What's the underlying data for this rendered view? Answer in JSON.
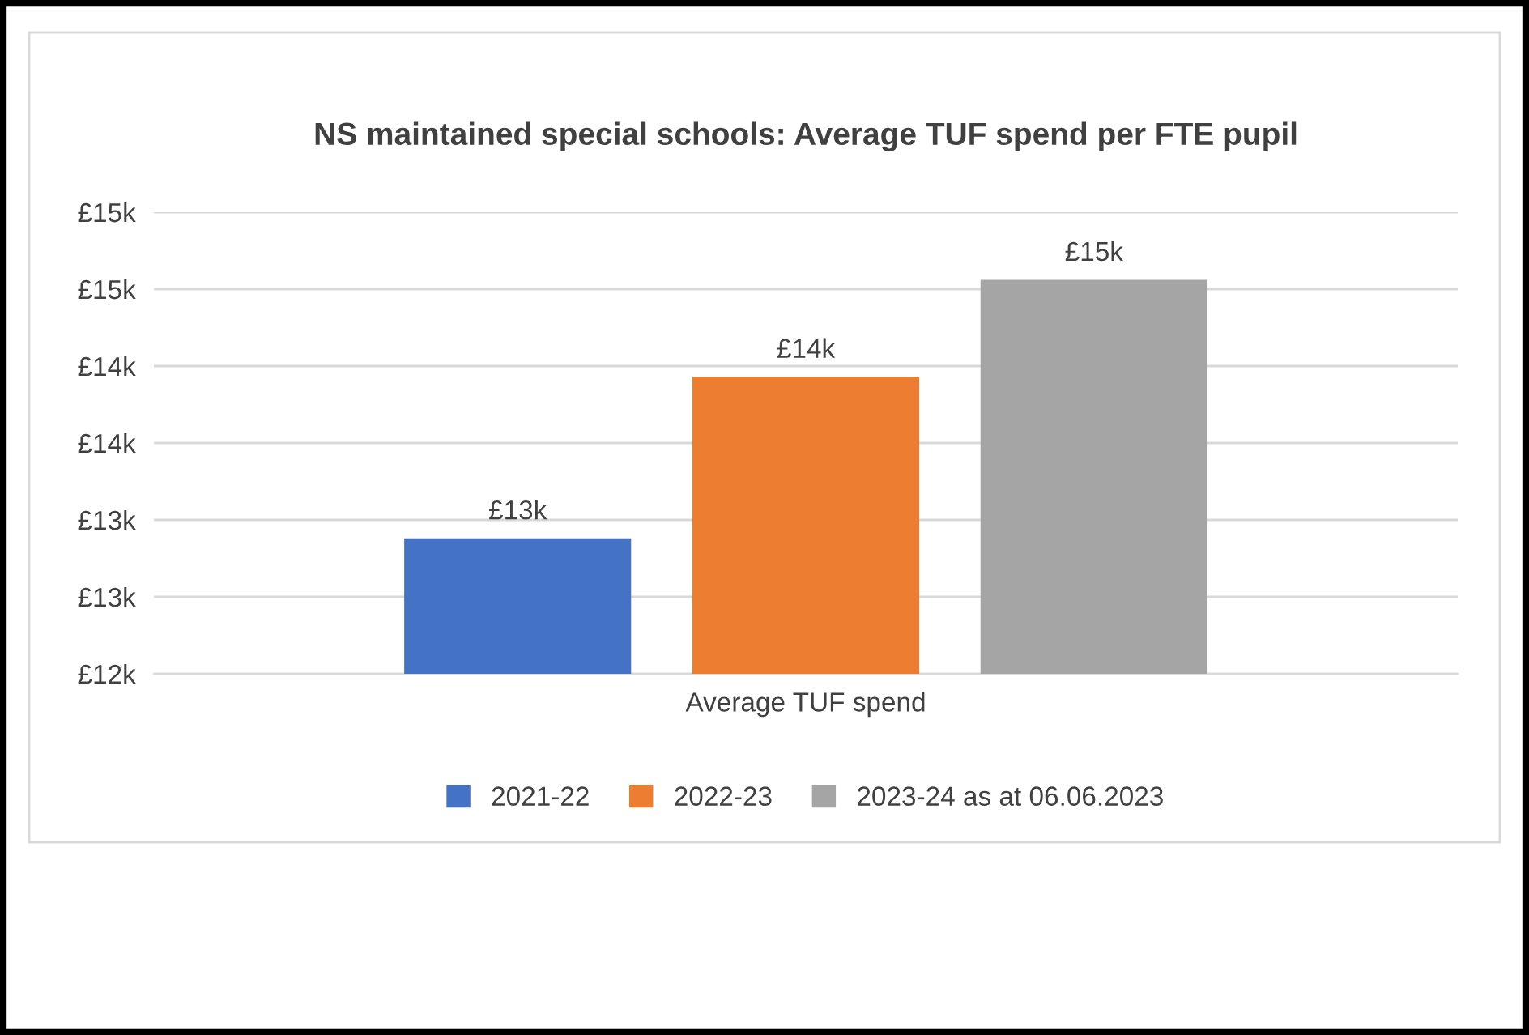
{
  "chart_data": {
    "type": "bar",
    "title": "NS maintained special schools: Average TUF spend per FTE pupil",
    "categories": [
      "Average TUF spend"
    ],
    "series": [
      {
        "name": "2021-22",
        "color": "#4472c4",
        "values": [
          12880
        ],
        "value_labels": [
          "£13k"
        ]
      },
      {
        "name": "2022-23",
        "color": "#ed7d31",
        "values": [
          13930
        ],
        "value_labels": [
          "£14k"
        ]
      },
      {
        "name": "2023-24 as at 06.06.2023",
        "color": "#a5a5a5",
        "values": [
          14560
        ],
        "value_labels": [
          "£15k"
        ]
      }
    ],
    "ylim": [
      12000,
      15000
    ],
    "yticks": [
      {
        "value": 12000,
        "label": "£12k"
      },
      {
        "value": 12500,
        "label": "£13k"
      },
      {
        "value": 13000,
        "label": "£13k"
      },
      {
        "value": 13500,
        "label": "£14k"
      },
      {
        "value": 14000,
        "label": "£14k"
      },
      {
        "value": 14500,
        "label": "£15k"
      },
      {
        "value": 15000,
        "label": "£15k"
      }
    ],
    "grid": "y",
    "legend": "bottom"
  }
}
